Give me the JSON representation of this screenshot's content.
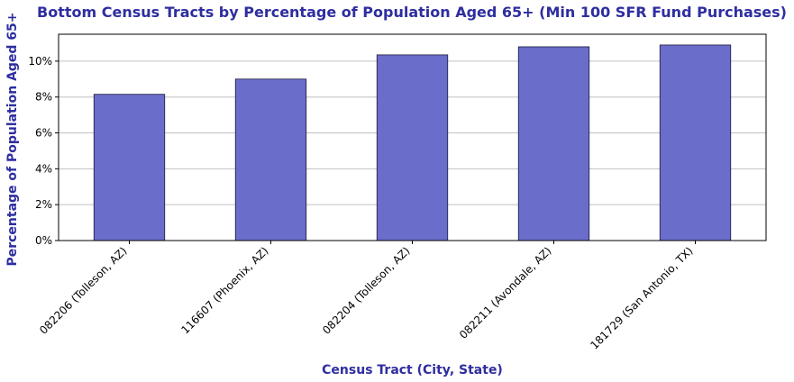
{
  "chart_data": {
    "type": "bar",
    "title": "Bottom Census Tracts by Percentage of Population Aged 65+ (Min 100 SFR Fund Purchases)",
    "xlabel": "Census Tract (City, State)",
    "ylabel": "Percentage of Population Aged 65+",
    "categories": [
      "082206 (Tolleson, AZ)",
      "116607 (Phoenix, AZ)",
      "082204 (Tolleson, AZ)",
      "082211 (Avondale, AZ)",
      "181729 (San Antonio, TX)"
    ],
    "values": [
      8.15,
      9.0,
      10.35,
      10.8,
      10.9
    ],
    "value_unit": "%",
    "ylim": [
      0,
      11.5
    ],
    "yticks": [
      0,
      2,
      4,
      6,
      8,
      10
    ],
    "ytick_labels": [
      "0%",
      "2%",
      "4%",
      "6%",
      "8%",
      "10%"
    ],
    "grid": "horizontal",
    "legend": "none"
  },
  "colors": {
    "bar_fill": "#6a6dc9",
    "bar_edge": "#1a1a3a",
    "text_accent": "#2e2ea0",
    "grid": "#c0c0c0",
    "axis": "#000000"
  }
}
